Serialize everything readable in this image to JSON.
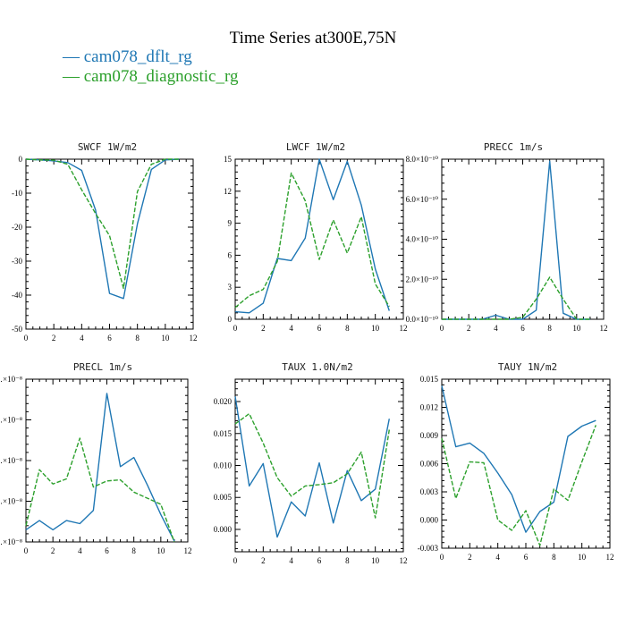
{
  "figure": {
    "title": "Time Series at300E,75N",
    "legend": [
      {
        "label": "cam078_dflt_rg",
        "color": "#1f77b4"
      },
      {
        "label": "cam078_diagnostic_rg",
        "color": "#2ca02c"
      }
    ]
  },
  "chart_data": [
    {
      "type": "line",
      "title": "SWCF   1W/m2",
      "x": [
        0,
        1,
        2,
        3,
        4,
        5,
        6,
        7,
        8,
        9,
        10,
        11
      ],
      "xlim": [
        0,
        12
      ],
      "xticks": [
        0,
        2,
        4,
        6,
        8,
        10,
        12
      ],
      "ylim": [
        -50,
        0
      ],
      "yticks": [
        -50,
        -40,
        -30,
        -20,
        -10,
        0
      ],
      "yticklabels": [
        "-50",
        "-40",
        "-30",
        "-20",
        "-10",
        "0"
      ],
      "series": [
        {
          "name": "cam078_dflt_rg",
          "color": "#1f77b4",
          "dashed": false,
          "values": [
            0,
            -0.2,
            -0.5,
            -1,
            -3.3,
            -15,
            -39.5,
            -41,
            -19,
            -3,
            -0.2,
            0
          ]
        },
        {
          "name": "cam078_diagnostic_rg",
          "color": "#2ca02c",
          "dashed": true,
          "values": [
            0,
            -0.2,
            -0.3,
            -1.5,
            -9,
            -16,
            -22.5,
            -38,
            -9.5,
            -1.5,
            0,
            0
          ]
        }
      ]
    },
    {
      "type": "line",
      "title": "LWCF   1W/m2",
      "x": [
        0,
        1,
        2,
        3,
        4,
        5,
        6,
        7,
        8,
        9,
        10,
        11
      ],
      "xlim": [
        0,
        12
      ],
      "xticks": [
        0,
        2,
        4,
        6,
        8,
        10,
        12
      ],
      "ylim": [
        0,
        15
      ],
      "yticks": [
        0,
        3,
        6,
        9,
        12,
        15
      ],
      "yticklabels": [
        "0",
        "3",
        "6",
        "9",
        "12",
        "15"
      ],
      "series": [
        {
          "name": "cam078_dflt_rg",
          "color": "#1f77b4",
          "dashed": false,
          "values": [
            0.7,
            0.6,
            1.5,
            5.7,
            5.5,
            7.6,
            15,
            11.2,
            14.8,
            10.7,
            4.7,
            0.8
          ]
        },
        {
          "name": "cam078_diagnostic_rg",
          "color": "#2ca02c",
          "dashed": true,
          "values": [
            1.1,
            2.2,
            2.8,
            5.4,
            13.7,
            11.1,
            5.6,
            9.3,
            6.2,
            9.6,
            3.3,
            1.2
          ]
        }
      ]
    },
    {
      "type": "line",
      "title": "PRECC   1m/s",
      "x": [
        0,
        1,
        2,
        3,
        4,
        5,
        6,
        7,
        8,
        9,
        10,
        11
      ],
      "xlim": [
        0,
        12
      ],
      "xticks": [
        0,
        2,
        4,
        6,
        8,
        10,
        12
      ],
      "ylim": [
        0,
        8e-10
      ],
      "yticks": [
        0,
        2e-10,
        4e-10,
        6e-10,
        8e-10
      ],
      "yticklabels": [
        "0.0×10⁻¹⁰",
        "2.0×10⁻¹⁰",
        "4.0×10⁻¹⁰",
        "6.0×10⁻¹⁰",
        "8.0×10⁻¹⁰"
      ],
      "series": [
        {
          "name": "cam078_dflt_rg",
          "color": "#1f77b4",
          "dashed": false,
          "values": [
            0,
            0,
            0,
            0,
            2e-11,
            0,
            0,
            4.5e-11,
            7.9e-10,
            3e-11,
            0,
            0
          ]
        },
        {
          "name": "cam078_diagnostic_rg",
          "color": "#2ca02c",
          "dashed": true,
          "values": [
            0,
            0,
            0,
            0,
            0,
            0,
            1e-11,
            1e-10,
            2.1e-10,
            1e-10,
            0,
            0
          ]
        }
      ]
    },
    {
      "type": "line",
      "title": "PRECL   1m/s",
      "x": [
        0,
        1,
        2,
        3,
        4,
        5,
        6,
        7,
        8,
        9,
        10,
        11
      ],
      "xlim": [
        0,
        12
      ],
      "xticks": [
        0,
        2,
        4,
        6,
        8,
        10,
        12
      ],
      "ylim": [
        0,
        1.6
      ],
      "yticks": [
        0,
        0.4,
        0.8,
        1.2,
        1.6
      ],
      "yticklabels": [
        "…×10⁻⁸",
        "…×10⁻⁸",
        "…×10⁻⁸",
        "…×10⁻⁸",
        "…×10⁻⁸"
      ],
      "series": [
        {
          "name": "cam078_dflt_rg",
          "color": "#1f77b4",
          "dashed": false,
          "values": [
            0.12,
            0.21,
            0.12,
            0.21,
            0.18,
            0.31,
            1.46,
            0.74,
            0.83,
            0.56,
            0.27,
            0.01
          ]
        },
        {
          "name": "cam078_diagnostic_rg",
          "color": "#2ca02c",
          "dashed": true,
          "values": [
            0.16,
            0.71,
            0.57,
            0.62,
            1.02,
            0.54,
            0.6,
            0.61,
            0.49,
            0.43,
            0.37,
            0
          ]
        }
      ]
    },
    {
      "type": "line",
      "title": "TAUX   1.0N/m2",
      "x": [
        0,
        1,
        2,
        3,
        4,
        5,
        6,
        7,
        8,
        9,
        10,
        11
      ],
      "xlim": [
        0,
        12
      ],
      "xticks": [
        0,
        2,
        4,
        6,
        8,
        10,
        12
      ],
      "ylim": [
        -0.0035,
        0.0235
      ],
      "yticks": [
        0,
        0.005,
        0.01,
        0.015,
        0.02
      ],
      "yticklabels": [
        "0.000",
        "0.005",
        "0.010",
        "0.015",
        "0.020"
      ],
      "series": [
        {
          "name": "cam078_dflt_rg",
          "color": "#1f77b4",
          "dashed": false,
          "values": [
            0.0208,
            0.0068,
            0.0103,
            -0.0012,
            0.0043,
            0.0021,
            0.0104,
            0.001,
            0.0092,
            0.0045,
            0.0063,
            0.0173
          ]
        },
        {
          "name": "cam078_diagnostic_rg",
          "color": "#2ca02c",
          "dashed": true,
          "values": [
            0.0165,
            0.0181,
            0.0135,
            0.0081,
            0.0052,
            0.0068,
            0.007,
            0.0073,
            0.0087,
            0.0121,
            0.0018,
            0.0156
          ]
        }
      ]
    },
    {
      "type": "line",
      "title": "TAUY   1N/m2",
      "x": [
        0,
        1,
        2,
        3,
        4,
        5,
        6,
        7,
        8,
        9,
        10,
        11
      ],
      "xlim": [
        0,
        12
      ],
      "xticks": [
        0,
        2,
        4,
        6,
        8,
        10,
        12
      ],
      "ylim": [
        -0.003,
        0.015
      ],
      "yticks": [
        -0.003,
        0,
        0.003,
        0.006,
        0.009,
        0.012,
        0.015
      ],
      "yticklabels": [
        "-0.003",
        "0.000",
        "0.003",
        "0.006",
        "0.009",
        "0.012",
        "0.015"
      ],
      "series": [
        {
          "name": "cam078_dflt_rg",
          "color": "#1f77b4",
          "dashed": false,
          "values": [
            0.0143,
            0.0078,
            0.0082,
            0.0071,
            0.005,
            0.0027,
            -0.0013,
            0.0009,
            0.0019,
            0.0089,
            0.01,
            0.0106
          ]
        },
        {
          "name": "cam078_diagnostic_rg",
          "color": "#2ca02c",
          "dashed": true,
          "values": [
            0.0087,
            0.0023,
            0.0062,
            0.0061,
            0,
            -0.0011,
            0.001,
            -0.0027,
            0.0033,
            0.0021,
            0.0062,
            0.0101
          ]
        }
      ]
    }
  ]
}
